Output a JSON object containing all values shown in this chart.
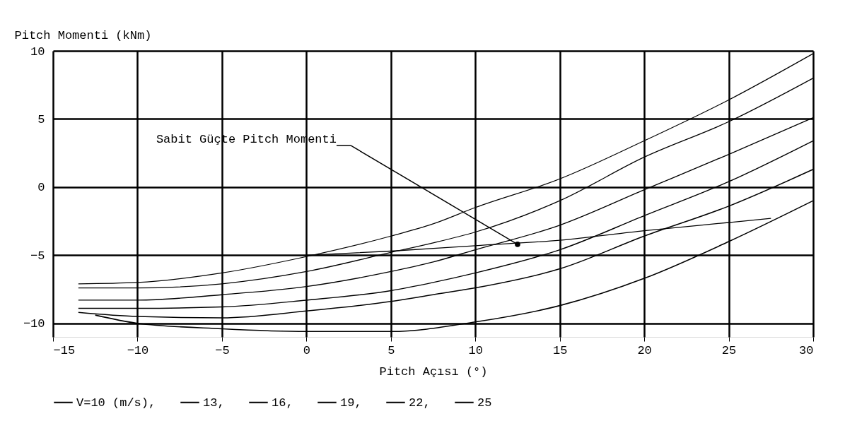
{
  "chart_data": {
    "type": "line",
    "xlabel": "Pitch Açısı (°)",
    "ylabel": "Pitch Momenti (kNm)",
    "xlim": [
      -15,
      30
    ],
    "xticks": [
      -15,
      -10,
      -5,
      0,
      5,
      10,
      15,
      20,
      25,
      30
    ],
    "ylim": [
      -11,
      10
    ],
    "yticks": [
      -10,
      -5,
      0,
      5,
      10
    ],
    "grid": true,
    "legend": "bottom",
    "line_style": "solid",
    "marker": "none",
    "annotations": [
      {
        "text": "Sabit Güçte Pitch Momenti",
        "x": 12.5,
        "y": -4.2
      }
    ],
    "series": [
      {
        "name": "V=10 (m/s),",
        "color": "#000000",
        "x": [
          -13.5,
          -10,
          -5,
          0,
          5,
          7.5,
          10,
          15,
          20,
          25,
          30
        ],
        "values": [
          -7.1,
          -7.0,
          -6.3,
          -5.1,
          -3.6,
          -2.7,
          -1.5,
          0.6,
          3.4,
          6.4,
          9.8
        ]
      },
      {
        "name": "13,",
        "color": "#000000",
        "x": [
          -13.5,
          -10,
          -5,
          0,
          5,
          7.5,
          10,
          15,
          20,
          25,
          30
        ],
        "values": [
          -7.4,
          -7.4,
          -7.1,
          -6.2,
          -4.8,
          -4.1,
          -3.3,
          -1.0,
          2.2,
          4.8,
          8.0
        ]
      },
      {
        "name": "16,",
        "color": "#000000",
        "x": [
          -13.5,
          -10,
          -5,
          0,
          5,
          7.5,
          10,
          15,
          20,
          25,
          30
        ],
        "values": [
          -8.3,
          -8.3,
          -7.9,
          -7.3,
          -6.2,
          -5.5,
          -4.6,
          -2.8,
          -0.2,
          2.4,
          5.1
        ]
      },
      {
        "name": "19,",
        "color": "#000000",
        "x": [
          -13.5,
          -10,
          -5,
          0,
          5,
          7.5,
          10,
          15,
          20,
          25,
          30
        ],
        "values": [
          -8.9,
          -8.9,
          -8.8,
          -8.3,
          -7.6,
          -7.0,
          -6.3,
          -4.6,
          -2.1,
          0.4,
          3.4
        ]
      },
      {
        "name": "22,",
        "color": "#000000",
        "x": [
          -13.5,
          -10,
          -5,
          0,
          5,
          7.5,
          10,
          15,
          20,
          25,
          30
        ],
        "values": [
          -9.2,
          -9.5,
          -9.6,
          -9.1,
          -8.4,
          -7.9,
          -7.4,
          -6.0,
          -3.6,
          -1.4,
          1.3
        ]
      },
      {
        "name": "25",
        "color": "#000000",
        "x": [
          -12.5,
          -10,
          -5,
          0,
          5,
          10,
          15,
          20,
          25,
          30
        ],
        "values": [
          -9.4,
          -10.0,
          -10.4,
          -10.6,
          -10.6,
          -9.9,
          -8.7,
          -6.7,
          -4.0,
          -1.0
        ]
      },
      {
        "color": "#000000",
        "x": [
          0,
          5,
          10,
          15,
          20,
          25,
          27.5
        ],
        "values": [
          -5.0,
          -4.7,
          -4.3,
          -3.9,
          -3.2,
          -2.6,
          -2.3
        ]
      }
    ]
  }
}
